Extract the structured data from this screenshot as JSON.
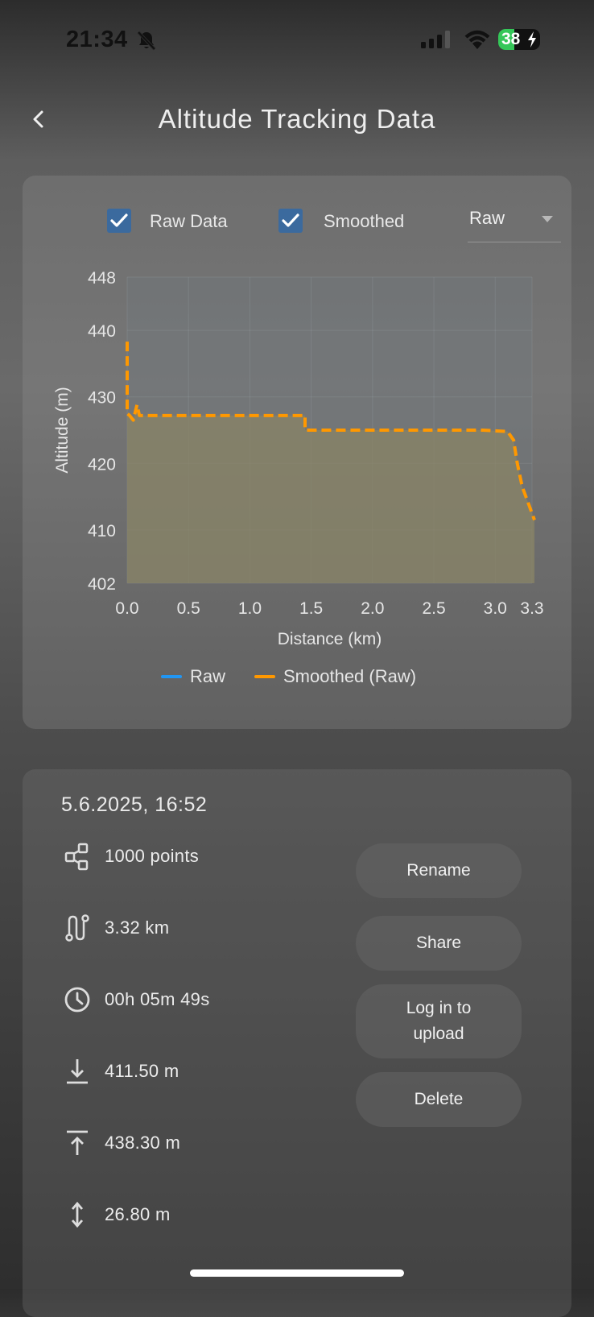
{
  "status_bar": {
    "time": "21:34",
    "battery": "38",
    "battery_level": 0.38
  },
  "header": {
    "title": "Altitude Tracking Data"
  },
  "chart_controls": {
    "raw_data_label": "Raw Data",
    "raw_data_checked": true,
    "smoothed_label": "Smoothed",
    "smoothed_checked": true,
    "source_selected": "Raw"
  },
  "chart_data": {
    "type": "line",
    "xlabel": "Distance (km)",
    "ylabel": "Altitude (m)",
    "xlim": [
      0.0,
      3.3
    ],
    "ylim": [
      402,
      448
    ],
    "x_ticks": [
      "0.0",
      "0.5",
      "1.0",
      "1.5",
      "2.0",
      "2.5",
      "3.0",
      "3.3"
    ],
    "x_tick_values": [
      0.0,
      0.5,
      1.0,
      1.5,
      2.0,
      2.5,
      3.0,
      3.3
    ],
    "y_ticks": [
      "448",
      "440",
      "430",
      "420",
      "410",
      "402"
    ],
    "y_tick_values": [
      448,
      440,
      430,
      420,
      410,
      402
    ],
    "grid": true,
    "legend_position": "bottom",
    "series": [
      {
        "name": "Raw",
        "color": "#2196f3",
        "style": "solid",
        "x": [
          0.0,
          0.0,
          0.0,
          0.02,
          0.05,
          0.08,
          0.1,
          0.12,
          1.0,
          1.45,
          1.45,
          1.6,
          2.0,
          2.5,
          2.9,
          3.1,
          3.15,
          3.18,
          3.22,
          3.24,
          3.27,
          3.32
        ],
        "y": [
          438.3,
          433.0,
          427.5,
          427.2,
          426.5,
          428.8,
          427.2,
          427.2,
          427.2,
          427.2,
          425.0,
          425.0,
          425.0,
          425.0,
          425.0,
          424.8,
          423.5,
          420.0,
          416.5,
          415.5,
          414.0,
          411.5
        ]
      },
      {
        "name": "Smoothed (Raw)",
        "color": "#ff9800",
        "style": "dashed",
        "x": [
          0.0,
          0.0,
          0.0,
          0.02,
          0.05,
          0.08,
          0.1,
          0.12,
          1.0,
          1.45,
          1.45,
          1.6,
          2.0,
          2.5,
          2.9,
          3.1,
          3.15,
          3.18,
          3.22,
          3.24,
          3.27,
          3.32
        ],
        "y": [
          438.3,
          433.0,
          427.5,
          427.2,
          426.5,
          428.8,
          427.2,
          427.2,
          427.2,
          427.2,
          425.0,
          425.0,
          425.0,
          425.0,
          425.0,
          424.8,
          423.5,
          420.0,
          416.5,
          415.5,
          414.0,
          411.5
        ]
      }
    ]
  },
  "legend": {
    "raw": "Raw",
    "smoothed": "Smoothed (Raw)"
  },
  "info": {
    "date": "5.6.2025, 16:52",
    "points": "1000 points",
    "distance": "3.32 km",
    "duration": "00h 05m 49s",
    "min_altitude": "411.50 m",
    "max_altitude": "438.30 m",
    "altitude_range": "26.80 m"
  },
  "actions": {
    "rename": "Rename",
    "share": "Share",
    "login_upload": "Log in to upload",
    "delete": "Delete"
  },
  "colors": {
    "accent_checkbox": "#3b6a9e",
    "raw_line": "#2196f3",
    "smoothed_line": "#ff9800",
    "fill": "#8a8466"
  }
}
